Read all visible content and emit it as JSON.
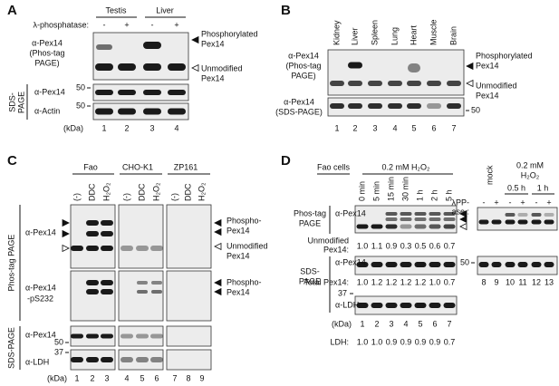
{
  "panel_a": {
    "label": "A",
    "groups": [
      "Testis",
      "Liver"
    ],
    "treatment": "λ-phosphatase:",
    "signs": [
      "-",
      "+",
      "-",
      "+"
    ],
    "phos_blot_label": [
      "α-Pex14",
      "(Phos-tag",
      "PAGE)"
    ],
    "phosphorylated": [
      "Phosphorylated",
      "Pex14"
    ],
    "unmodified": [
      "Unmodified",
      "Pex14"
    ],
    "sds_page": [
      "SDS-",
      "PAGE"
    ],
    "sds_rows": [
      "α-Pex14",
      "α-Actin"
    ],
    "markers": [
      "50",
      "50"
    ],
    "kda": "(kDa)",
    "lanes": [
      "1",
      "2",
      "3",
      "4"
    ]
  },
  "panel_b": {
    "label": "B",
    "tissues": [
      "Kidney",
      "Liver",
      "Spleen",
      "Lung",
      "Heart",
      "Muscle",
      "Brain"
    ],
    "phos_blot_label": [
      "α-Pex14",
      "(Phos-tag",
      "PAGE)"
    ],
    "sds_blot_label": [
      "α-Pex14",
      "(SDS-PAGE)"
    ],
    "phosphorylated": [
      "Phosphorylated",
      "Pex14"
    ],
    "unmodified": [
      "Unmodified",
      "Pex14"
    ],
    "marker": "50",
    "lanes": [
      "1",
      "2",
      "3",
      "4",
      "5",
      "6",
      "7"
    ]
  },
  "panel_c": {
    "label": "C",
    "groups": [
      "Fao",
      "CHO-K1",
      "ZP161"
    ],
    "treatments": [
      "(-)",
      "DDC",
      "H₂O₂",
      "(-)",
      "DDC",
      "H₂O₂",
      "(-)",
      "DDC",
      "H₂O₂"
    ],
    "phos_tag_page": "Phos-tag PAGE",
    "sds_page": "SDS-PAGE",
    "rows": [
      "α-Pex14",
      "α-Pex14",
      "α-Pex14",
      "α-LDH"
    ],
    "ps232": "-pS232",
    "phospho_1": [
      "Phospho-",
      "Pex14"
    ],
    "unmodified": [
      "Unmodified",
      "Pex14"
    ],
    "phospho_2": [
      "Phospho-",
      "Pex14"
    ],
    "markers": [
      "50",
      "37"
    ],
    "kda": "(kDa)",
    "lanes": [
      "1",
      "2",
      "3",
      "4",
      "5",
      "6",
      "7",
      "8",
      "9"
    ]
  },
  "panel_d": {
    "label": "D",
    "cells": "Fao cells",
    "treatment": "0.2 mM H₂O₂",
    "times": [
      "0 min",
      "5 min",
      "15 min",
      "30 min",
      "1 h",
      "2 h",
      "5 h"
    ],
    "phos_tag_page": [
      "Phos-tag",
      "PAGE"
    ],
    "sds_page": [
      "SDS-",
      "PAGE"
    ],
    "rows": [
      "α-Pex14",
      "α-Pex14",
      "α-LDH"
    ],
    "unmodified_label": [
      "Unmodified",
      "Pex14:"
    ],
    "unmodified_values": [
      "1.0",
      "1.1",
      "0.9",
      "0.3",
      "0.5",
      "0.6",
      "0.7"
    ],
    "total_label": "Total Pex14:",
    "total_values": [
      "1.0",
      "1.2",
      "1.2",
      "1.2",
      "1.2",
      "1.0",
      "0.7"
    ],
    "marker": "37",
    "kda": "(kDa)",
    "lanes": [
      "1",
      "2",
      "3",
      "4",
      "5",
      "6",
      "7"
    ],
    "ldh_label": "LDH:",
    "ldh_values": [
      "1.0",
      "1.0",
      "0.9",
      "0.9",
      "0.9",
      "0.9",
      "0.7"
    ],
    "mock": "mock",
    "treatment_right": [
      "0.2 mM",
      "H₂O₂"
    ],
    "times_right": [
      "0.5 h",
      "1 h"
    ],
    "lpp": [
      "λPP-",
      "ase :"
    ],
    "signs": [
      "-",
      "+",
      "-",
      "+",
      "-",
      "+"
    ],
    "marker_right": "50",
    "lanes_right": [
      "8",
      "9",
      "10",
      "11",
      "12",
      "13"
    ]
  }
}
